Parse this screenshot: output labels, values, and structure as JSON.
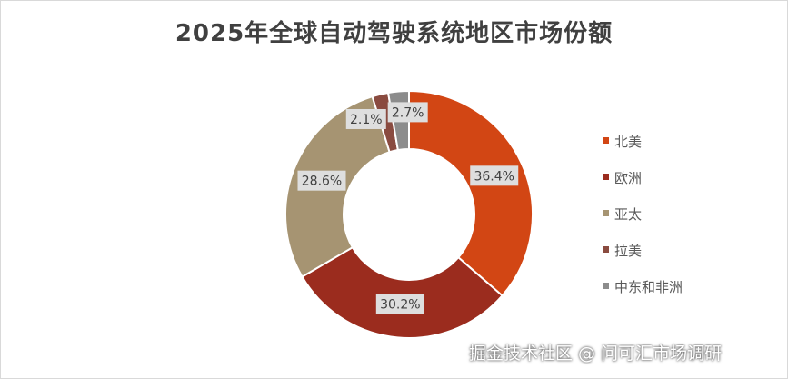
{
  "chart_data": {
    "type": "pie",
    "variant": "donut",
    "title": "2025年全球自动驾驶系统地区市场份额",
    "categories": [
      "北美",
      "欧洲",
      "亚太",
      "拉美",
      "中东和非洲"
    ],
    "values": [
      36.4,
      30.2,
      28.6,
      2.1,
      2.7
    ],
    "data_labels": [
      "36.4%",
      "30.2%",
      "28.6%",
      "2.1%",
      "2.7%"
    ],
    "colors": [
      "#D24614",
      "#9B2C1E",
      "#A69472",
      "#8A4B40",
      "#8C8C8C"
    ],
    "legend_position": "right",
    "unit": "%"
  },
  "watermark": "掘金技术社区 @ 问可汇市场调研"
}
